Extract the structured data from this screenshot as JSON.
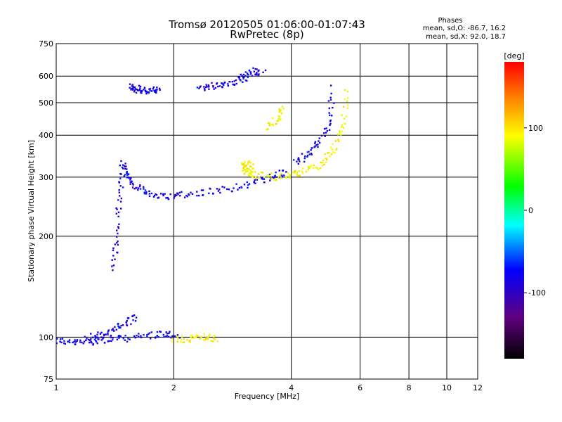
{
  "chart_data": {
    "type": "scatter",
    "title": "Tromsø 20120505 01:06:00-01:07:43",
    "subtitle": "RwPretec (8p)",
    "xlabel": "Frequency [MHz]",
    "ylabel": "Stationary phase Virtual Height [km]",
    "xscale": "log",
    "yscale": "log",
    "xlim": [
      1,
      12
    ],
    "ylim": [
      75,
      750
    ],
    "x_ticks": [
      1,
      2,
      4,
      6,
      8,
      10,
      12
    ],
    "y_ticks": [
      75,
      100,
      200,
      300,
      400,
      500,
      600,
      750
    ],
    "grid": true,
    "phases_box": {
      "title": "Phases",
      "line1": "mean, sd,O: -86.7, 16.2",
      "line2": "mean, sd,X:  92.0, 18.7"
    },
    "colorbar": {
      "label": "[deg]",
      "range": [
        -180,
        180
      ],
      "ticks": [
        100,
        0,
        -100
      ],
      "colormap": "rainbow"
    },
    "series": [
      {
        "name": "O",
        "mean": -86.7,
        "sd": 16.2,
        "traces": [
          {
            "x": [
              1.0,
              1.1,
              1.2,
              1.35,
              1.5,
              1.7,
              1.9,
              2.05
            ],
            "y": [
              98,
              96,
              97,
              98,
              99,
              101,
              102,
              101
            ]
          },
          {
            "x": [
              1.48,
              1.52,
              1.6,
              1.72,
              1.9,
              2.1,
              2.4,
              2.8,
              3.2,
              3.6,
              3.9
            ],
            "y": [
              330,
              300,
              280,
              268,
              263,
              265,
              270,
              278,
              288,
              300,
              310
            ]
          },
          {
            "x": [
              1.4,
              1.43,
              1.46,
              1.48
            ],
            "y": [
              160,
              200,
              260,
              330
            ]
          },
          {
            "x": [
              1.55,
              1.6,
              1.65,
              1.75,
              1.85
            ],
            "y": [
              560,
              550,
              545,
              540,
              555
            ]
          },
          {
            "x": [
              2.3,
              2.5,
              2.7,
              2.9,
              3.1
            ],
            "y": [
              550,
              560,
              570,
              580,
              590
            ]
          },
          {
            "x": [
              3.0,
              3.2,
              3.4
            ],
            "y": [
              600,
              620,
              610
            ]
          },
          {
            "x": [
              4.1,
              4.4,
              4.7,
              5.0,
              5.1
            ],
            "y": [
              330,
              350,
              380,
              430,
              560
            ]
          },
          {
            "x": [
              1.2,
              1.3,
              1.4,
              1.5,
              1.6
            ],
            "y": [
              100,
              101,
              104,
              110,
              115
            ]
          }
        ]
      },
      {
        "name": "X",
        "mean": 92.0,
        "sd": 18.7,
        "traces": [
          {
            "x": [
              3.0,
              3.2,
              3.6,
              4.0,
              4.4,
              4.8,
              5.1,
              5.4,
              5.6
            ],
            "y": [
              315,
              305,
              300,
              303,
              315,
              330,
              360,
              420,
              560
            ]
          },
          {
            "x": [
              3.5,
              3.7,
              3.8
            ],
            "y": [
              420,
              450,
              480
            ]
          },
          {
            "x": [
              2.0,
              2.2,
              2.4,
              2.6
            ],
            "y": [
              98,
              99,
              100,
              99
            ]
          },
          {
            "x": [
              3.0,
              3.1,
              3.2
            ],
            "y": [
              320,
              330,
              310
            ]
          }
        ]
      }
    ]
  }
}
